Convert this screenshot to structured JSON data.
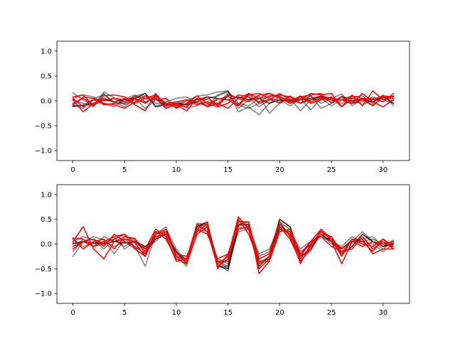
{
  "chart_data": [
    {
      "type": "line",
      "title": "",
      "xlabel": "",
      "ylabel": "",
      "xlim": [
        -1.55,
        32.55
      ],
      "ylim": [
        -1.2,
        1.2
      ],
      "xticks": [
        0,
        5,
        10,
        15,
        20,
        25,
        30
      ],
      "yticks": [
        -1.0,
        -0.5,
        0.0,
        0.5,
        1.0
      ],
      "xtick_labels": [
        "0",
        "5",
        "10",
        "15",
        "20",
        "25",
        "30"
      ],
      "ytick_labels": [
        "−1.0",
        "−0.5",
        "0.0",
        "0.5",
        "1.0"
      ],
      "grid": false,
      "legend": "none",
      "x": [
        0,
        1,
        2,
        3,
        4,
        5,
        6,
        7,
        8,
        9,
        10,
        11,
        12,
        13,
        14,
        15,
        16,
        17,
        18,
        19,
        20,
        21,
        22,
        23,
        24,
        25,
        26,
        27,
        28,
        29,
        30,
        31
      ],
      "series": [
        {
          "color": "#000000",
          "opacity": 0.5,
          "values": [
            0.16,
            0.02,
            -0.1,
            0.18,
            0.06,
            -0.02,
            0.08,
            0.1,
            -0.05,
            -0.05,
            -0.12,
            0.0,
            0.1,
            0.12,
            0.18,
            0.2,
            -0.22,
            -0.12,
            -0.28,
            -0.05,
            0.08,
            0.02,
            -0.05,
            0.1,
            -0.05,
            0.05,
            0.14,
            -0.1,
            0.05,
            -0.08,
            0.08,
            0.05
          ]
        },
        {
          "color": "#000000",
          "opacity": 0.5,
          "values": [
            0.05,
            0.12,
            0.08,
            -0.06,
            -0.12,
            0.04,
            0.12,
            -0.02,
            0.05,
            -0.12,
            -0.06,
            -0.14,
            -0.1,
            0.05,
            0.1,
            0.18,
            -0.15,
            0.02,
            0.1,
            -0.25,
            -0.05,
            0.05,
            -0.2,
            0.02,
            0.08,
            0.02,
            -0.05,
            0.08,
            0.1,
            -0.05,
            0.12,
            -0.1
          ]
        },
        {
          "color": "#000000",
          "opacity": 0.5,
          "values": [
            -0.08,
            -0.15,
            0.05,
            0.12,
            -0.02,
            -0.12,
            0.05,
            -0.15,
            0.02,
            -0.02,
            0.05,
            0.08,
            -0.05,
            -0.08,
            0.02,
            0.1,
            -0.08,
            -0.15,
            -0.05,
            0.05,
            0.02,
            -0.1,
            0.05,
            -0.18,
            0.05,
            -0.1,
            0.02,
            -0.05,
            -0.02,
            0.08,
            0.02,
            -0.05
          ]
        },
        {
          "color": "#000000",
          "opacity": 0.5,
          "values": [
            0.02,
            -0.05,
            -0.12,
            0.15,
            -0.05,
            -0.02,
            0.1,
            0.15,
            -0.1,
            -0.05,
            -0.08,
            0.02,
            -0.02,
            -0.12,
            0.12,
            0.2,
            -0.05,
            -0.1,
            0.05,
            0.08,
            0.1,
            -0.05,
            0.02,
            0.1,
            -0.15,
            -0.05,
            0.1,
            -0.02,
            0.05,
            0.02,
            0.1,
            0.0
          ]
        },
        {
          "color": "#000000",
          "opacity": 0.5,
          "values": [
            -0.12,
            -0.08,
            0.02,
            0.0,
            0.05,
            -0.08,
            0.02,
            -0.02,
            0.08,
            -0.1,
            -0.02,
            -0.08,
            0.05,
            0.02,
            -0.05,
            0.15,
            0.05,
            0.08,
            -0.12,
            0.02,
            -0.02,
            0.08,
            -0.05,
            0.02,
            0.05,
            -0.02,
            0.08,
            0.05,
            -0.08,
            0.02,
            0.05,
            0.1
          ]
        },
        {
          "color": "#000000",
          "opacity": 0.8,
          "values": [
            -0.1,
            -0.1,
            -0.05,
            0.02,
            -0.02,
            0.02,
            0.05,
            0.15,
            -0.12,
            -0.08,
            -0.05,
            -0.08,
            -0.02,
            0.08,
            0.05,
            0.02,
            0.08,
            0.02,
            0.05,
            -0.05,
            0.02,
            0.0,
            0.02,
            0.05,
            0.08,
            0.02,
            0.02,
            0.0,
            0.02,
            -0.02,
            0.1,
            -0.05
          ]
        },
        {
          "color": "#ff0000",
          "opacity": 1.0,
          "values": [
            0.02,
            -0.22,
            -0.05,
            0.05,
            -0.02,
            0.05,
            -0.08,
            -0.2,
            0.15,
            -0.1,
            -0.05,
            -0.12,
            0.05,
            -0.12,
            -0.05,
            -0.15,
            0.05,
            0.15,
            0.05,
            0.15,
            0.05,
            -0.05,
            0.08,
            0.12,
            0.15,
            -0.05,
            0.08,
            -0.05,
            0.02,
            0.05,
            -0.02,
            0.15
          ]
        },
        {
          "color": "#ff0000",
          "opacity": 1.0,
          "values": [
            0.08,
            0.12,
            -0.1,
            0.1,
            0.12,
            0.08,
            -0.05,
            0.05,
            0.12,
            -0.05,
            -0.12,
            -0.05,
            0.1,
            -0.05,
            -0.12,
            -0.05,
            0.12,
            0.08,
            -0.02,
            0.1,
            0.12,
            0.08,
            0.02,
            0.15,
            0.12,
            0.15,
            -0.12,
            0.12,
            -0.1,
            0.2,
            0.02,
            0.1
          ]
        },
        {
          "color": "#ff0000",
          "opacity": 1.0,
          "values": [
            -0.05,
            0.05,
            -0.08,
            0.02,
            0.05,
            0.02,
            0.08,
            0.05,
            0.02,
            0.05,
            -0.15,
            -0.05,
            0.02,
            0.08,
            -0.1,
            0.1,
            -0.08,
            0.15,
            -0.05,
            0.02,
            0.15,
            0.02,
            0.08,
            -0.05,
            0.02,
            0.08,
            -0.12,
            0.05,
            0.02,
            -0.1,
            0.08,
            0.05
          ]
        },
        {
          "color": "#ff0000",
          "opacity": 1.0,
          "values": [
            0.05,
            -0.12,
            0.02,
            -0.05,
            -0.08,
            -0.15,
            -0.02,
            0.1,
            0.05,
            -0.15,
            -0.08,
            -0.2,
            0.05,
            -0.12,
            0.05,
            0.02,
            -0.1,
            0.12,
            0.15,
            0.05,
            -0.05,
            0.1,
            -0.05,
            0.05,
            0.1,
            0.05,
            0.02,
            -0.05,
            0.15,
            -0.02,
            -0.12,
            0.02
          ]
        },
        {
          "color": "#ff0000",
          "opacity": 1.0,
          "values": [
            -0.08,
            0.08,
            0.05,
            -0.08,
            -0.05,
            -0.05,
            0.05,
            -0.05,
            0.1,
            -0.05,
            -0.02,
            0.02,
            -0.08,
            -0.02,
            -0.08,
            0.12,
            0.05,
            -0.02,
            0.12,
            0.15,
            0.08,
            -0.02,
            0.1,
            -0.02,
            0.05,
            0.02,
            0.02,
            0.1,
            0.05,
            0.02,
            0.1,
            0.08
          ]
        }
      ]
    },
    {
      "type": "line",
      "title": "",
      "xlabel": "",
      "ylabel": "",
      "xlim": [
        -1.55,
        32.55
      ],
      "ylim": [
        -1.2,
        1.2
      ],
      "xticks": [
        0,
        5,
        10,
        15,
        20,
        25,
        30
      ],
      "yticks": [
        -1.0,
        -0.5,
        0.0,
        0.5,
        1.0
      ],
      "xtick_labels": [
        "0",
        "5",
        "10",
        "15",
        "20",
        "25",
        "30"
      ],
      "ytick_labels": [
        "−1.0",
        "−0.5",
        "0.0",
        "0.5",
        "1.0"
      ],
      "grid": false,
      "legend": "none",
      "x": [
        0,
        1,
        2,
        3,
        4,
        5,
        6,
        7,
        8,
        9,
        10,
        11,
        12,
        13,
        14,
        15,
        16,
        17,
        18,
        19,
        20,
        21,
        22,
        23,
        24,
        25,
        26,
        27,
        28,
        29,
        30,
        31
      ],
      "series": [
        {
          "color": "#000000",
          "opacity": 0.5,
          "values": [
            -0.25,
            0.05,
            0.15,
            0.08,
            -0.2,
            0.1,
            -0.05,
            -0.45,
            0.2,
            0.35,
            -0.25,
            -0.45,
            0.42,
            0.4,
            -0.35,
            -0.5,
            0.4,
            0.35,
            -0.3,
            -0.2,
            0.5,
            0.35,
            -0.25,
            -0.15,
            0.3,
            0.1,
            -0.2,
            -0.05,
            0.2,
            0.05,
            -0.1,
            0.05
          ]
        },
        {
          "color": "#000000",
          "opacity": 0.5,
          "values": [
            -0.15,
            0.1,
            -0.05,
            0.15,
            0.05,
            0.15,
            0.12,
            -0.2,
            0.1,
            0.3,
            -0.1,
            -0.35,
            0.35,
            0.3,
            -0.4,
            -0.55,
            0.35,
            0.3,
            -0.35,
            -0.3,
            0.45,
            0.3,
            -0.2,
            0.0,
            0.25,
            0.15,
            -0.15,
            0.05,
            0.1,
            0.15,
            -0.05,
            0.08
          ]
        },
        {
          "color": "#000000",
          "opacity": 0.5,
          "values": [
            0.05,
            0.15,
            0.08,
            -0.1,
            0.1,
            -0.05,
            0.08,
            -0.15,
            0.25,
            0.2,
            -0.3,
            -0.4,
            0.4,
            0.35,
            -0.45,
            -0.45,
            0.4,
            0.38,
            -0.4,
            -0.25,
            0.4,
            0.15,
            -0.3,
            -0.05,
            0.2,
            0.0,
            -0.1,
            0.1,
            0.05,
            0.0,
            -0.15,
            0.0
          ]
        },
        {
          "color": "#000000",
          "opacity": 0.5,
          "values": [
            0.1,
            -0.05,
            0.02,
            0.05,
            -0.05,
            0.05,
            -0.1,
            -0.05,
            0.05,
            0.25,
            -0.2,
            -0.3,
            0.3,
            0.25,
            -0.3,
            -0.4,
            0.25,
            0.3,
            -0.25,
            -0.15,
            0.35,
            0.25,
            -0.1,
            0.05,
            0.15,
            0.05,
            -0.05,
            0.15,
            0.05,
            0.1,
            0.0,
            -0.05
          ]
        },
        {
          "color": "#000000",
          "opacity": 0.5,
          "values": [
            0.02,
            0.05,
            0.1,
            0.0,
            0.15,
            -0.1,
            0.05,
            -0.1,
            0.15,
            0.2,
            -0.15,
            -0.35,
            0.38,
            0.4,
            -0.35,
            -0.45,
            0.3,
            0.35,
            -0.2,
            -0.1,
            0.4,
            0.2,
            -0.15,
            -0.02,
            0.2,
            0.05,
            -0.08,
            0.05,
            0.25,
            0.05,
            -0.05,
            0.02
          ]
        },
        {
          "color": "#000000",
          "opacity": 0.8,
          "values": [
            0.0,
            0.05,
            0.02,
            0.0,
            0.05,
            0.02,
            0.05,
            -0.05,
            0.1,
            0.2,
            -0.15,
            -0.4,
            0.35,
            0.45,
            -0.45,
            -0.5,
            0.38,
            0.4,
            -0.45,
            -0.25,
            0.5,
            0.35,
            -0.25,
            -0.1,
            0.2,
            0.05,
            -0.2,
            -0.05,
            0.2,
            0.05,
            -0.05,
            0.0
          ]
        },
        {
          "color": "#ff0000",
          "opacity": 1.0,
          "values": [
            0.12,
            0.1,
            -0.05,
            0.05,
            0.15,
            0.2,
            -0.1,
            -0.25,
            0.2,
            0.25,
            -0.25,
            -0.3,
            0.3,
            0.45,
            -0.5,
            -0.2,
            0.45,
            0.45,
            -0.6,
            -0.35,
            0.3,
            0.2,
            -0.4,
            0.0,
            0.25,
            0.1,
            -0.1,
            0.05,
            -0.05,
            0.05,
            0.0,
            0.05
          ]
        },
        {
          "color": "#ff0000",
          "opacity": 1.0,
          "values": [
            0.05,
            0.35,
            -0.1,
            -0.3,
            0.05,
            0.1,
            0.05,
            -0.15,
            0.15,
            0.2,
            -0.2,
            -0.25,
            0.25,
            0.4,
            -0.4,
            -0.25,
            0.55,
            0.3,
            -0.5,
            -0.3,
            0.35,
            0.1,
            -0.35,
            -0.1,
            0.3,
            0.05,
            -0.4,
            0.05,
            0.05,
            -0.15,
            0.1,
            -0.05
          ]
        },
        {
          "color": "#ff0000",
          "opacity": 1.0,
          "values": [
            -0.05,
            0.05,
            0.1,
            -0.05,
            0.2,
            0.05,
            -0.05,
            -0.2,
            0.25,
            0.1,
            -0.3,
            -0.4,
            0.2,
            0.35,
            -0.35,
            -0.35,
            0.4,
            0.45,
            -0.4,
            -0.25,
            0.3,
            0.25,
            -0.3,
            -0.05,
            0.2,
            0.15,
            -0.2,
            0.1,
            0.1,
            -0.2,
            -0.1,
            -0.1
          ]
        },
        {
          "color": "#ff0000",
          "opacity": 1.0,
          "values": [
            0.1,
            -0.1,
            0.05,
            0.1,
            -0.1,
            0.15,
            0.1,
            -0.1,
            0.3,
            0.15,
            -0.35,
            -0.3,
            0.4,
            0.25,
            -0.45,
            -0.3,
            0.5,
            0.2,
            -0.35,
            -0.35,
            0.25,
            0.3,
            -0.2,
            0.05,
            0.15,
            -0.05,
            -0.15,
            -0.1,
            0.15,
            -0.1,
            0.05,
            -0.1
          ]
        },
        {
          "color": "#ff0000",
          "opacity": 1.0,
          "values": [
            -0.1,
            0.05,
            -0.05,
            0.02,
            0.1,
            0.2,
            0.02,
            -0.25,
            0.2,
            0.3,
            -0.25,
            -0.35,
            0.3,
            0.2,
            -0.3,
            -0.2,
            0.3,
            0.35,
            -0.3,
            -0.2,
            0.45,
            0.15,
            -0.25,
            0.05,
            0.3,
            0.1,
            -0.25,
            0.1,
            0.0,
            -0.05,
            0.1,
            -0.1
          ]
        }
      ]
    }
  ]
}
